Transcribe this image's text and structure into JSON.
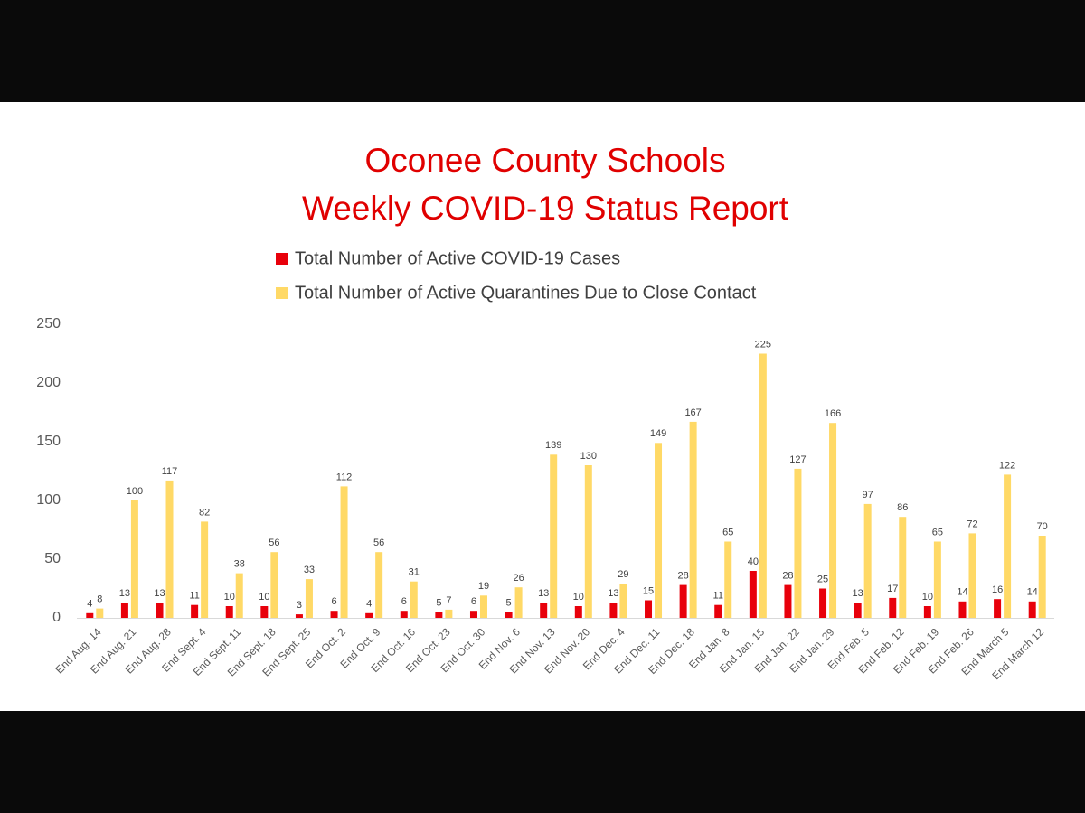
{
  "chart_data": {
    "type": "bar",
    "title": "Oconee County Schools",
    "subtitle": "Weekly COVID-19 Status Report",
    "categories": [
      "End Aug. 14",
      "End Aug. 21",
      "End Aug. 28",
      "End Sept. 4",
      "End Sept. 11",
      "End Sept. 18",
      "End Sept. 25",
      "End Oct. 2",
      "End Oct. 9",
      "End Oct. 16",
      "End Oct. 23",
      "End Oct. 30",
      "End Nov. 6",
      "End Nov. 13",
      "End Nov. 20",
      "End Dec. 4",
      "End Dec. 11",
      "End Dec. 18",
      "End Jan. 8",
      "End Jan. 15",
      "End Jan. 22",
      "End Jan. 29",
      "End Feb. 5",
      "End Feb. 12",
      "End Feb. 19",
      "End Feb. 26",
      "End March 5",
      "End March 12"
    ],
    "series": [
      {
        "name": "Total Number of Active COVID-19 Cases",
        "color": "#e8000b",
        "values": [
          4,
          13,
          13,
          11,
          10,
          10,
          3,
          6,
          4,
          6,
          5,
          6,
          5,
          13,
          10,
          13,
          15,
          28,
          11,
          40,
          28,
          25,
          13,
          17,
          10,
          14,
          16,
          14
        ]
      },
      {
        "name": "Total Number of Active Quarantines Due to Close Contact",
        "color": "#ffd966",
        "values": [
          8,
          100,
          117,
          82,
          38,
          56,
          33,
          112,
          56,
          31,
          7,
          19,
          26,
          139,
          130,
          29,
          149,
          167,
          65,
          225,
          127,
          166,
          97,
          86,
          65,
          72,
          122,
          70
        ]
      }
    ],
    "ylim": [
      0,
      250
    ],
    "yticks": [
      0,
      50,
      100,
      150,
      200,
      250
    ],
    "grid": false
  }
}
